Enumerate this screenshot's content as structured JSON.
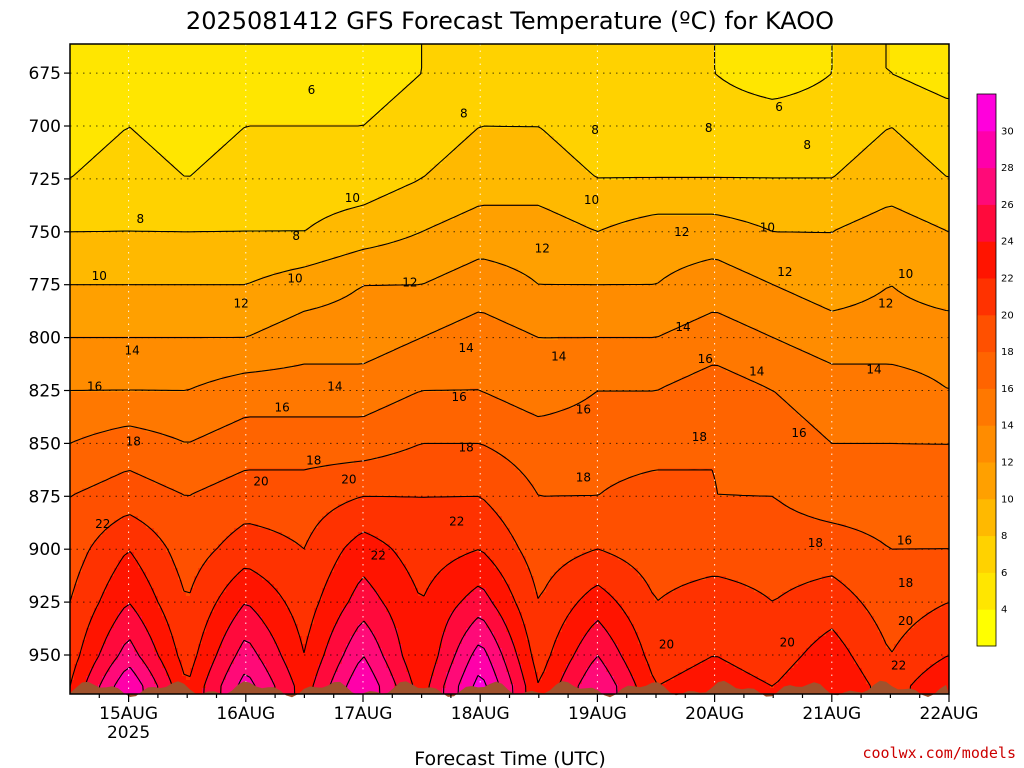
{
  "chart_data": {
    "type": "heatmap",
    "title": "2025081412 GFS Forecast Temperature (ºC) for KAOO",
    "xlabel": "Forecast Time (UTC)",
    "ylabel": "",
    "watermark": "coolwx.com/models",
    "y_axis": {
      "quantity": "pressure (hPa)",
      "ticks": [
        675,
        700,
        725,
        750,
        775,
        800,
        825,
        850,
        875,
        900,
        925,
        950
      ],
      "range": [
        668,
        980
      ],
      "inverted": true
    },
    "x_axis": {
      "ticks": [
        "15AUG",
        "16AUG",
        "17AUG",
        "18AUG",
        "19AUG",
        "20AUG",
        "21AUG",
        "22AUG"
      ],
      "sub_label": "2025",
      "range_days": [
        14.5,
        22.0
      ]
    },
    "grid": true,
    "colorbar": {
      "position": "right",
      "levels": [
        2,
        4,
        6,
        8,
        10,
        12,
        14,
        16,
        18,
        20,
        22,
        24,
        26,
        28,
        30,
        32
      ],
      "tick_labels": [
        "4",
        "6",
        "8",
        "10",
        "12",
        "14",
        "16",
        "18",
        "20",
        "22",
        "24",
        "26",
        "28",
        "30"
      ],
      "colors": [
        "#ffff00",
        "#ffe600",
        "#ffd200",
        "#ffb900",
        "#ffa000",
        "#ff8c00",
        "#ff7800",
        "#ff6400",
        "#ff5000",
        "#ff3200",
        "#ff1400",
        "#ff0a3c",
        "#ff0a78",
        "#ff00aa",
        "#ff00dc"
      ]
    },
    "levels_hPa": [
      675,
      700,
      725,
      750,
      775,
      800,
      825,
      850,
      875,
      900,
      925,
      950,
      965
    ],
    "times": [
      "14 12Z",
      "15 00Z",
      "15 12Z",
      "16 00Z",
      "16 12Z",
      "17 00Z",
      "17 12Z",
      "18 00Z",
      "18 12Z",
      "19 00Z",
      "19 12Z",
      "20 00Z",
      "20 12Z",
      "21 00Z",
      "21 12Z",
      "22 00Z"
    ],
    "temperature_C": [
      [
        5,
        5,
        4,
        5,
        5,
        5,
        6,
        7,
        6,
        6,
        7,
        6,
        5,
        6,
        6,
        5
      ],
      [
        5,
        6,
        5,
        6,
        6,
        6,
        7,
        8,
        8,
        7,
        7,
        7,
        7,
        7,
        8,
        7
      ],
      [
        6,
        7,
        6,
        7,
        7,
        7,
        8,
        9,
        9,
        8,
        8,
        8,
        8,
        8,
        9,
        8
      ],
      [
        8,
        8,
        8,
        8,
        8,
        9,
        10,
        11,
        11,
        10,
        11,
        11,
        10,
        10,
        11,
        10
      ],
      [
        10,
        10,
        10,
        10,
        11,
        12,
        12,
        13,
        12,
        12,
        12,
        13,
        12,
        11,
        12,
        11
      ],
      [
        12,
        12,
        12,
        12,
        13,
        13,
        14,
        15,
        14,
        14,
        14,
        15,
        14,
        13,
        13,
        13
      ],
      [
        14,
        14,
        14,
        15,
        15,
        15,
        16,
        16,
        15,
        16,
        16,
        17,
        16,
        15,
        15,
        14
      ],
      [
        16,
        17,
        16,
        17,
        17,
        17,
        18,
        18,
        17,
        17,
        17,
        18,
        17,
        16,
        16,
        16
      ],
      [
        18,
        19,
        18,
        19,
        19,
        20,
        20,
        20,
        18,
        18,
        19,
        18,
        18,
        17,
        17,
        17
      ],
      [
        19,
        22,
        19,
        21,
        20,
        23,
        21,
        22,
        19,
        20,
        19,
        19,
        19,
        19,
        18,
        18
      ],
      [
        20,
        24,
        20,
        24,
        21,
        25,
        22,
        25,
        20,
        23,
        20,
        21,
        20,
        21,
        19,
        20
      ],
      [
        21,
        27,
        21,
        27,
        22,
        28,
        22,
        29,
        21,
        26,
        21,
        22,
        21,
        23,
        20,
        22
      ],
      [
        22,
        30,
        22,
        29,
        23,
        30,
        23,
        31,
        22,
        28,
        22,
        23,
        22,
        24,
        21,
        24
      ]
    ],
    "contour_labels": [
      {
        "text": "6",
        "t": 16.56,
        "p": 683
      },
      {
        "text": "6",
        "t": 20.55,
        "p": 691
      },
      {
        "text": "8",
        "t": 17.86,
        "p": 694
      },
      {
        "text": "8",
        "t": 18.98,
        "p": 702
      },
      {
        "text": "8",
        "t": 19.95,
        "p": 701
      },
      {
        "text": "8",
        "t": 20.79,
        "p": 709
      },
      {
        "text": "8",
        "t": 15.1,
        "p": 744
      },
      {
        "text": "8",
        "t": 16.43,
        "p": 752
      },
      {
        "text": "10",
        "t": 14.75,
        "p": 771
      },
      {
        "text": "10",
        "t": 16.42,
        "p": 772
      },
      {
        "text": "10",
        "t": 16.91,
        "p": 734
      },
      {
        "text": "10",
        "t": 18.95,
        "p": 735
      },
      {
        "text": "10",
        "t": 20.45,
        "p": 748
      },
      {
        "text": "10",
        "t": 21.63,
        "p": 770
      },
      {
        "text": "12",
        "t": 15.96,
        "p": 784
      },
      {
        "text": "12",
        "t": 17.4,
        "p": 774
      },
      {
        "text": "12",
        "t": 18.53,
        "p": 758
      },
      {
        "text": "12",
        "t": 19.72,
        "p": 750
      },
      {
        "text": "12",
        "t": 20.6,
        "p": 769
      },
      {
        "text": "12",
        "t": 21.46,
        "p": 784
      },
      {
        "text": "14",
        "t": 15.03,
        "p": 806
      },
      {
        "text": "14",
        "t": 16.76,
        "p": 823
      },
      {
        "text": "14",
        "t": 17.88,
        "p": 805
      },
      {
        "text": "14",
        "t": 18.67,
        "p": 809
      },
      {
        "text": "14",
        "t": 19.73,
        "p": 795
      },
      {
        "text": "14",
        "t": 20.36,
        "p": 816
      },
      {
        "text": "14",
        "t": 21.36,
        "p": 815
      },
      {
        "text": "16",
        "t": 14.71,
        "p": 823
      },
      {
        "text": "16",
        "t": 16.31,
        "p": 833
      },
      {
        "text": "16",
        "t": 17.82,
        "p": 828
      },
      {
        "text": "16",
        "t": 18.88,
        "p": 834
      },
      {
        "text": "16",
        "t": 19.92,
        "p": 810
      },
      {
        "text": "16",
        "t": 20.72,
        "p": 845
      },
      {
        "text": "18",
        "t": 15.04,
        "p": 849
      },
      {
        "text": "18",
        "t": 16.58,
        "p": 858
      },
      {
        "text": "18",
        "t": 17.88,
        "p": 852
      },
      {
        "text": "18",
        "t": 18.88,
        "p": 866
      },
      {
        "text": "18",
        "t": 19.87,
        "p": 847
      },
      {
        "text": "18",
        "t": 20.86,
        "p": 897
      },
      {
        "text": "18",
        "t": 21.63,
        "p": 916
      },
      {
        "text": "20",
        "t": 16.13,
        "p": 868
      },
      {
        "text": "20",
        "t": 16.88,
        "p": 867
      },
      {
        "text": "20",
        "t": 19.59,
        "p": 945
      },
      {
        "text": "20",
        "t": 20.62,
        "p": 944
      },
      {
        "text": "20",
        "t": 21.63,
        "p": 934
      },
      {
        "text": "22",
        "t": 14.78,
        "p": 888
      },
      {
        "text": "22",
        "t": 17.13,
        "p": 903
      },
      {
        "text": "22",
        "t": 17.8,
        "p": 887
      },
      {
        "text": "22",
        "t": 21.57,
        "p": 955
      },
      {
        "text": "16",
        "t": 21.62,
        "p": 896
      }
    ]
  }
}
